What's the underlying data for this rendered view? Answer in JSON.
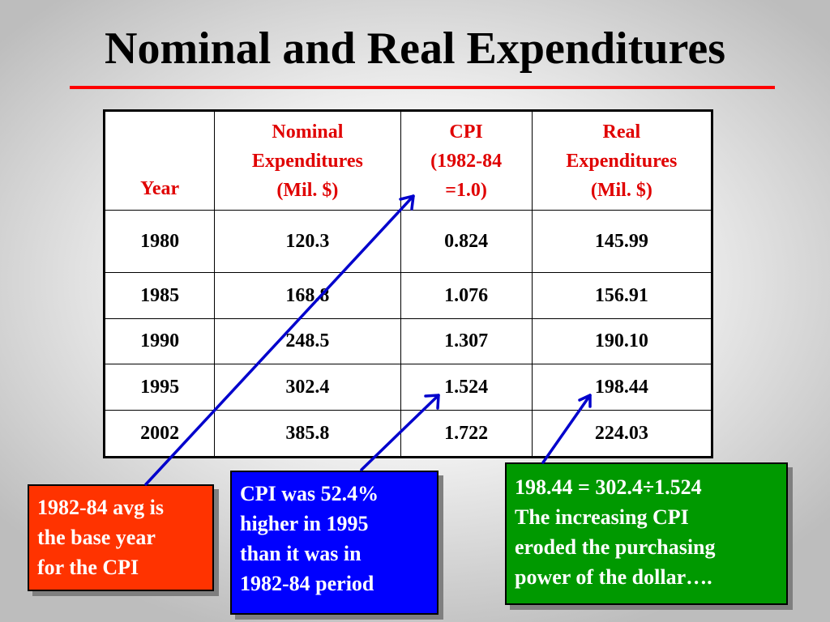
{
  "title": "Nominal and Real Expenditures",
  "table": {
    "headers": {
      "year": "Year",
      "nominal": [
        "Nominal",
        "Expenditures",
        "(Mil. $)"
      ],
      "cpi": [
        "CPI",
        "(1982-84",
        "=1.0)"
      ],
      "real": [
        "Real",
        "Expenditures",
        "(Mil. $)"
      ]
    },
    "rows": [
      [
        "1980",
        "120.3",
        "0.824",
        "145.99"
      ],
      [
        "1985",
        "168.8",
        "1.076",
        "156.91"
      ],
      [
        "1990",
        "248.5",
        "1.307",
        "190.10"
      ],
      [
        "1995",
        "302.4",
        "1.524",
        "198.44"
      ],
      [
        "2002",
        "385.8",
        "1.722",
        "224.03"
      ]
    ]
  },
  "notes": {
    "red": [
      "1982-84 avg is",
      "the base year",
      "for the CPI"
    ],
    "blue": [
      "CPI was 52.4%",
      "higher in 1995",
      "than it was in",
      "1982-84 period"
    ],
    "green": [
      "198.44 = 302.4÷1.524",
      "The increasing CPI",
      "eroded the purchasing",
      "power of the dollar…."
    ]
  },
  "colors": {
    "title_rule": "#ff0000",
    "header_text": "#e00000",
    "note_red": "#ff3300",
    "note_blue": "#0000ff",
    "note_green": "#009900",
    "arrow": "#0000cc"
  }
}
